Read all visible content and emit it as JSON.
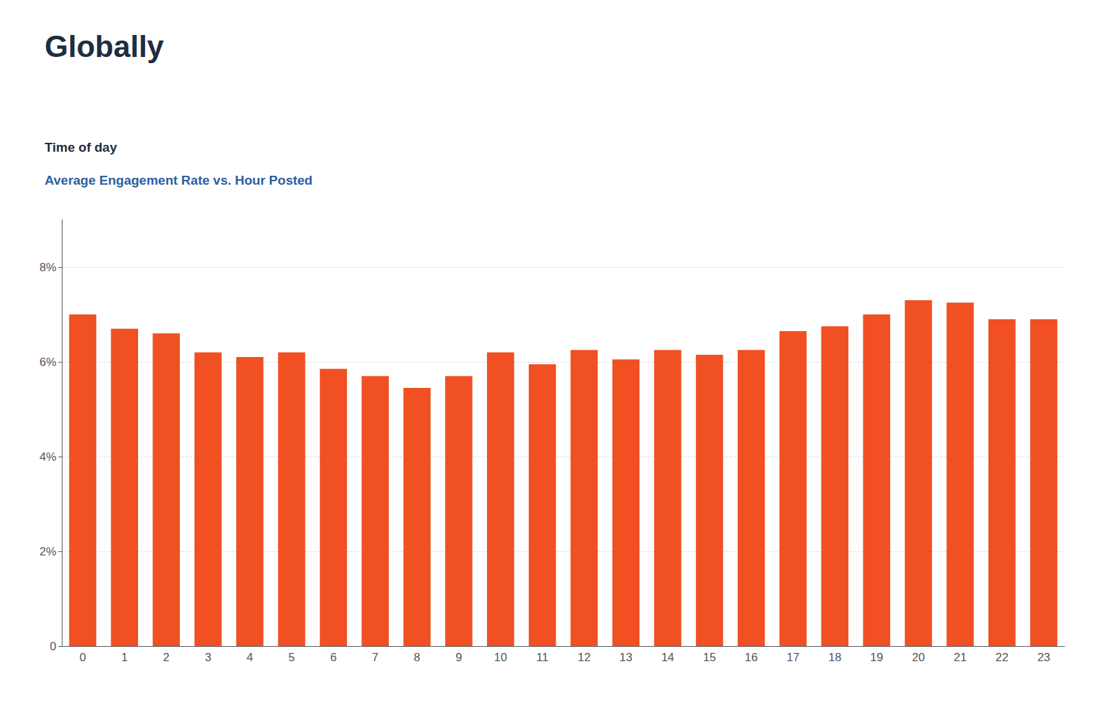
{
  "chart_data": {
    "type": "bar",
    "title": "Globally",
    "subtitle": [
      "Time of day",
      "Average Engagement Rate vs. Hour Posted"
    ],
    "categories": [
      "0",
      "1",
      "2",
      "3",
      "4",
      "5",
      "6",
      "7",
      "8",
      "9",
      "10",
      "11",
      "12",
      "13",
      "14",
      "15",
      "16",
      "17",
      "18",
      "19",
      "20",
      "21",
      "22",
      "23"
    ],
    "values": [
      7.0,
      6.7,
      6.6,
      6.2,
      6.1,
      6.2,
      5.85,
      5.7,
      5.45,
      5.7,
      6.2,
      5.95,
      6.25,
      6.05,
      6.25,
      6.15,
      6.25,
      6.65,
      6.75,
      7.0,
      7.3,
      7.25,
      6.9,
      6.9
    ],
    "color": "#F05022",
    "ylim": [
      0,
      9
    ],
    "yticks": [
      0,
      {
        "value": 2,
        "label": "2%"
      },
      {
        "value": 4,
        "label": "4%"
      },
      {
        "value": 6,
        "label": "6%"
      },
      {
        "value": 8,
        "label": "8%"
      }
    ],
    "grid": true
  }
}
